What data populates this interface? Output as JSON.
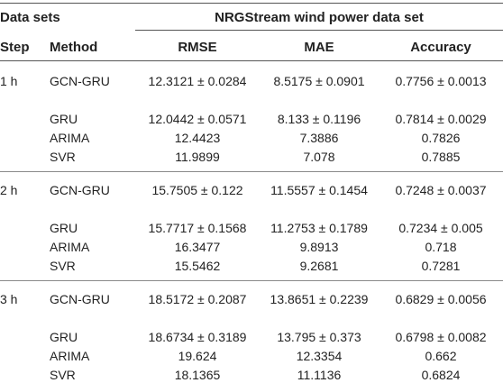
{
  "header": {
    "data_sets": "Data sets",
    "dataset_title": "NRGStream wind power data set",
    "step": "Step",
    "method": "Method",
    "rmse": "RMSE",
    "mae": "MAE",
    "accuracy": "Accuracy"
  },
  "groups": [
    {
      "step": "1 h",
      "rows": [
        {
          "method": "GCN-GRU",
          "rmse": "12.3121 ± 0.0284",
          "mae": "8.5175 ± 0.0901",
          "accuracy": "0.7756 ± 0.0013"
        },
        {
          "method": "GRU",
          "rmse": "12.0442 ± 0.0571",
          "mae": "8.133 ± 0.1196",
          "accuracy": "0.7814 ± 0.0029"
        },
        {
          "method": "ARIMA",
          "rmse": "12.4423",
          "mae": "7.3886",
          "accuracy": "0.7826"
        },
        {
          "method": "SVR",
          "rmse": "11.9899",
          "mae": "7.078",
          "accuracy": "0.7885"
        }
      ]
    },
    {
      "step": "2 h",
      "rows": [
        {
          "method": "GCN-GRU",
          "rmse": "15.7505 ± 0.122",
          "mae": "11.5557 ± 0.1454",
          "accuracy": "0.7248 ± 0.0037"
        },
        {
          "method": "GRU",
          "rmse": "15.7717 ± 0.1568",
          "mae": "11.2753 ± 0.1789",
          "accuracy": "0.7234 ± 0.005"
        },
        {
          "method": "ARIMA",
          "rmse": "16.3477",
          "mae": "9.8913",
          "accuracy": "0.718"
        },
        {
          "method": "SVR",
          "rmse": "15.5462",
          "mae": "9.2681",
          "accuracy": "0.7281"
        }
      ]
    },
    {
      "step": "3 h",
      "rows": [
        {
          "method": "GCN-GRU",
          "rmse": "18.5172 ± 0.2087",
          "mae": "13.8651 ± 0.2239",
          "accuracy": "0.6829 ± 0.0056"
        },
        {
          "method": "GRU",
          "rmse": "18.6734 ± 0.3189",
          "mae": "13.795 ± 0.373",
          "accuracy": "0.6798 ± 0.0082"
        },
        {
          "method": "ARIMA",
          "rmse": "19.624",
          "mae": "12.3354",
          "accuracy": "0.662"
        },
        {
          "method": "SVR",
          "rmse": "18.1365",
          "mae": "11.1136",
          "accuracy": "0.6824"
        }
      ]
    }
  ]
}
